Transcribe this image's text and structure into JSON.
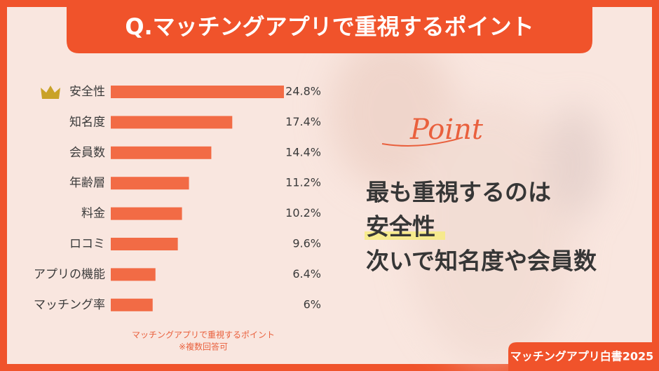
{
  "chart_data": {
    "type": "bar",
    "orientation": "horizontal",
    "title": "Q.マッチングアプリで重視するポイント",
    "categories": [
      "安全性",
      "知名度",
      "会員数",
      "年齢層",
      "料金",
      "ロコミ",
      "アプリの機能",
      "マッチング率"
    ],
    "values": [
      24.8,
      17.4,
      14.4,
      11.2,
      10.2,
      9.6,
      6.4,
      6
    ],
    "value_labels": [
      "24.8%",
      "17.4%",
      "14.4%",
      "11.2%",
      "10.2%",
      "9.6%",
      "6.4%",
      "6%"
    ],
    "color": "#f26b45",
    "notes": [
      "マッチングアプリで重視するポイント",
      "※複数回答可"
    ]
  },
  "point": {
    "label": "Point",
    "lines": [
      "最も重視するのは",
      "安全性",
      "次いで知名度や会員数"
    ]
  },
  "badge": "マッチングアプリ白書2025"
}
